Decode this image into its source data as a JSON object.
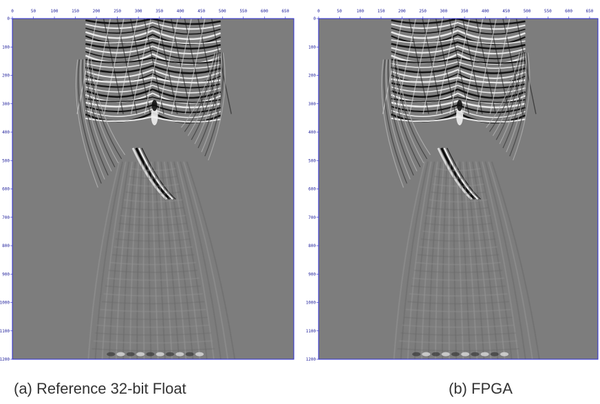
{
  "colors": {
    "axis": "#2b2bd6",
    "tick_text": "#1a1a99",
    "background_gray": "#7d7d7d",
    "caption_text": "#333333"
  },
  "panels": [
    {
      "id": "a",
      "caption": "(a) Reference 32-bit Float",
      "x_ticks": [
        "0",
        "50",
        "100",
        "150",
        "200",
        "250",
        "300",
        "350",
        "400",
        "450",
        "500",
        "550",
        "600",
        "650"
      ],
      "y_ticks": [
        "0",
        "100",
        "200",
        "300",
        "400",
        "500",
        "600",
        "700",
        "800",
        "900",
        "1000",
        "1100",
        "1200"
      ]
    },
    {
      "id": "b",
      "caption": "(b) FPGA",
      "x_ticks": [
        "0",
        "50",
        "100",
        "150",
        "200",
        "250",
        "300",
        "350",
        "400",
        "450",
        "500",
        "550",
        "600",
        "650"
      ],
      "y_ticks": [
        "0",
        "100",
        "200",
        "300",
        "400",
        "500",
        "600",
        "700",
        "800",
        "900",
        "1000",
        "1100",
        "1200"
      ]
    }
  ]
}
